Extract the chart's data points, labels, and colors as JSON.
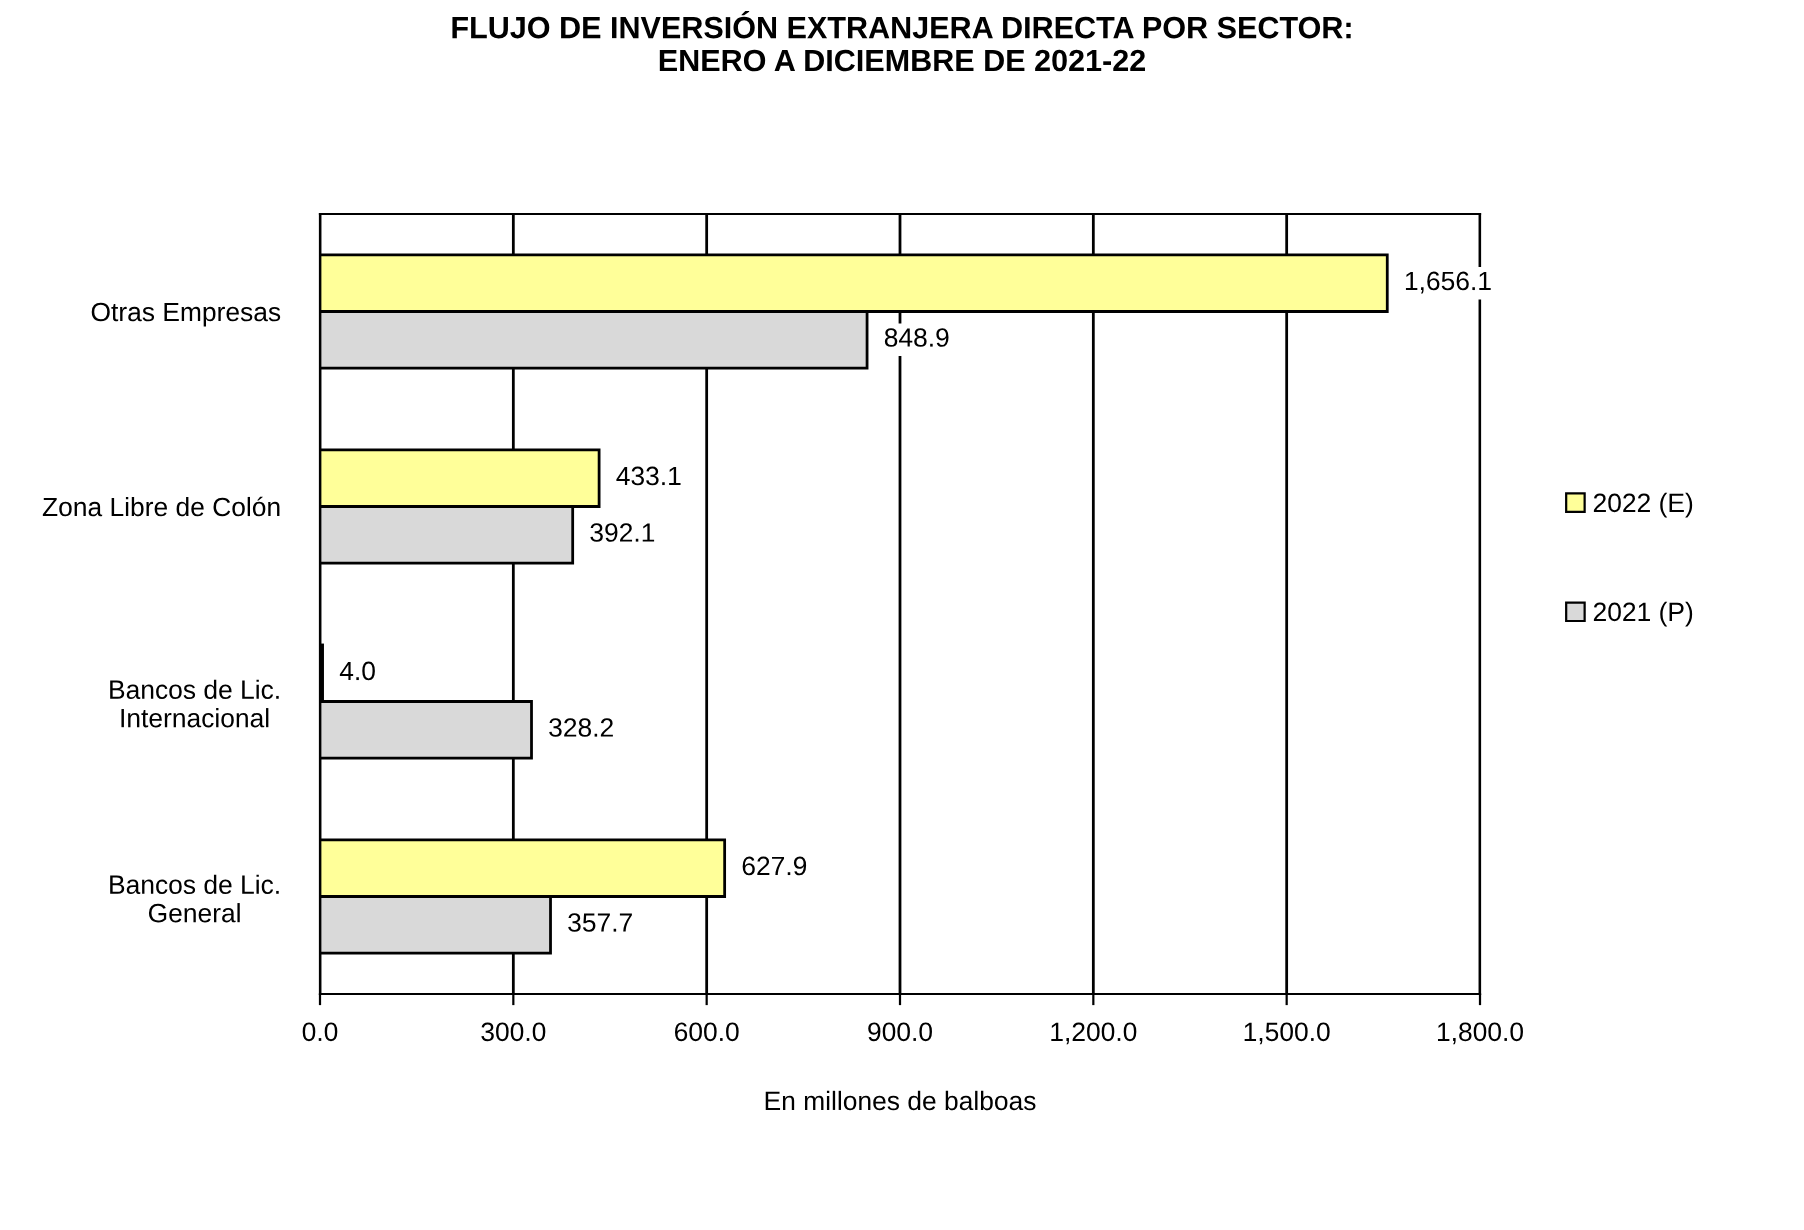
{
  "chart_data": {
    "type": "bar",
    "orientation": "horizontal",
    "title": "FLUJO DE INVERSIÓN EXTRANJERA DIRECTA POR SECTOR:\nENERO A DICIEMBRE DE 2021-22",
    "xlabel": "En millones de balboas",
    "categories": [
      "Otras Empresas",
      "Zona Libre de Colón",
      "Bancos de Lic.\nInternacional",
      "Bancos de Lic.\nGeneral"
    ],
    "series": [
      {
        "name": "2022 (E)",
        "color": "#ffff99",
        "values": [
          1656.1,
          433.1,
          4.0,
          627.9
        ],
        "value_labels": [
          "1,656.1",
          "433.1",
          "4.0",
          "627.9"
        ]
      },
      {
        "name": "2021 (P)",
        "color": "#d9d9d9",
        "values": [
          848.9,
          392.1,
          328.2,
          357.7
        ],
        "value_labels": [
          "848.9",
          "392.1",
          "328.2",
          "357.7"
        ]
      }
    ],
    "xlim": [
      0,
      1800
    ],
    "xticks": [
      {
        "value": 0,
        "label": "0.0"
      },
      {
        "value": 300,
        "label": "300.0"
      },
      {
        "value": 600,
        "label": "600.0"
      },
      {
        "value": 900,
        "label": "900.0"
      },
      {
        "value": 1200,
        "label": "1,200.0"
      },
      {
        "value": 1500,
        "label": "1,500.0"
      },
      {
        "value": 1800,
        "label": "1,800.0"
      }
    ],
    "grid": "x",
    "legend": "right"
  }
}
